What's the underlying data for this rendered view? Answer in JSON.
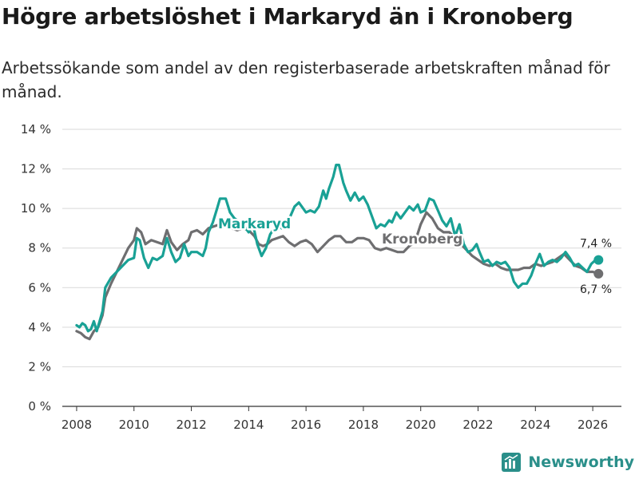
{
  "header": {
    "title": "Högre arbetslöshet i Markaryd än i Kronoberg",
    "subtitle": "Arbetssökande som andel av den registerbaserade arbetskraften månad för månad."
  },
  "brand": {
    "name": "Newsworthy"
  },
  "colors": {
    "markaryd": "#19a195",
    "kronoberg": "#6e6e70",
    "grid": "#d9d9d9",
    "axis": "#333333"
  },
  "chart_data": {
    "type": "line",
    "title": "Högre arbetslöshet i Markaryd än i Kronoberg",
    "xlabel": "",
    "ylabel": "",
    "xlim": [
      2007.5,
      2027.0
    ],
    "ylim": [
      0,
      14
    ],
    "grid": true,
    "x_ticks": [
      2008,
      2010,
      2012,
      2014,
      2016,
      2018,
      2020,
      2022,
      2024,
      2026
    ],
    "x_tick_labels": [
      "2008",
      "2010",
      "2012",
      "2014",
      "2016",
      "2018",
      "2020",
      "2022",
      "2024",
      "2026"
    ],
    "y_ticks": [
      0,
      2,
      4,
      6,
      8,
      10,
      12,
      14
    ],
    "y_tick_labels": [
      "0 %",
      "2 %",
      "4 %",
      "6 %",
      "8 %",
      "10 %",
      "12 %",
      "14 %"
    ],
    "series": [
      {
        "name": "Markaryd",
        "label": "Markaryd",
        "color": "#19a195",
        "end_label": "7,4 %",
        "points": [
          [
            2008.0,
            4.1
          ],
          [
            2008.1,
            4.0
          ],
          [
            2008.2,
            4.2
          ],
          [
            2008.3,
            4.1
          ],
          [
            2008.4,
            3.8
          ],
          [
            2008.5,
            3.9
          ],
          [
            2008.6,
            4.3
          ],
          [
            2008.7,
            3.8
          ],
          [
            2008.8,
            4.3
          ],
          [
            2008.9,
            4.8
          ],
          [
            2009.0,
            6.0
          ],
          [
            2009.2,
            6.5
          ],
          [
            2009.4,
            6.8
          ],
          [
            2009.6,
            7.1
          ],
          [
            2009.8,
            7.4
          ],
          [
            2010.0,
            7.5
          ],
          [
            2010.1,
            8.5
          ],
          [
            2010.2,
            8.4
          ],
          [
            2010.35,
            7.5
          ],
          [
            2010.5,
            7.0
          ],
          [
            2010.65,
            7.5
          ],
          [
            2010.8,
            7.4
          ],
          [
            2011.0,
            7.6
          ],
          [
            2011.15,
            8.5
          ],
          [
            2011.3,
            7.8
          ],
          [
            2011.45,
            7.3
          ],
          [
            2011.6,
            7.5
          ],
          [
            2011.75,
            8.2
          ],
          [
            2011.9,
            7.6
          ],
          [
            2012.0,
            7.8
          ],
          [
            2012.2,
            7.8
          ],
          [
            2012.4,
            7.6
          ],
          [
            2012.5,
            8.0
          ],
          [
            2012.6,
            8.8
          ],
          [
            2012.75,
            9.3
          ],
          [
            2012.9,
            10.0
          ],
          [
            2013.0,
            10.5
          ],
          [
            2013.2,
            10.5
          ],
          [
            2013.35,
            9.8
          ],
          [
            2013.5,
            9.5
          ],
          [
            2013.7,
            9.3
          ],
          [
            2013.9,
            9.0
          ],
          [
            2014.0,
            8.8
          ],
          [
            2014.15,
            9.2
          ],
          [
            2014.3,
            8.2
          ],
          [
            2014.45,
            7.6
          ],
          [
            2014.6,
            8.0
          ],
          [
            2014.75,
            8.7
          ],
          [
            2014.9,
            9.0
          ],
          [
            2015.0,
            9.3
          ],
          [
            2015.15,
            9.0
          ],
          [
            2015.3,
            9.2
          ],
          [
            2015.45,
            9.6
          ],
          [
            2015.6,
            10.1
          ],
          [
            2015.75,
            10.3
          ],
          [
            2015.9,
            10.0
          ],
          [
            2016.0,
            9.8
          ],
          [
            2016.15,
            9.9
          ],
          [
            2016.3,
            9.8
          ],
          [
            2016.45,
            10.1
          ],
          [
            2016.6,
            10.9
          ],
          [
            2016.7,
            10.5
          ],
          [
            2016.8,
            11.0
          ],
          [
            2016.95,
            11.6
          ],
          [
            2017.05,
            12.2
          ],
          [
            2017.15,
            12.2
          ],
          [
            2017.3,
            11.3
          ],
          [
            2017.4,
            10.9
          ],
          [
            2017.55,
            10.4
          ],
          [
            2017.7,
            10.8
          ],
          [
            2017.85,
            10.4
          ],
          [
            2018.0,
            10.6
          ],
          [
            2018.15,
            10.2
          ],
          [
            2018.3,
            9.6
          ],
          [
            2018.45,
            9.0
          ],
          [
            2018.6,
            9.2
          ],
          [
            2018.75,
            9.1
          ],
          [
            2018.9,
            9.4
          ],
          [
            2019.0,
            9.3
          ],
          [
            2019.15,
            9.8
          ],
          [
            2019.3,
            9.5
          ],
          [
            2019.45,
            9.8
          ],
          [
            2019.6,
            10.1
          ],
          [
            2019.75,
            9.9
          ],
          [
            2019.9,
            10.2
          ],
          [
            2020.0,
            9.8
          ],
          [
            2020.15,
            9.9
          ],
          [
            2020.3,
            10.5
          ],
          [
            2020.45,
            10.4
          ],
          [
            2020.6,
            9.9
          ],
          [
            2020.75,
            9.4
          ],
          [
            2020.9,
            9.1
          ],
          [
            2021.05,
            9.5
          ],
          [
            2021.2,
            8.6
          ],
          [
            2021.35,
            9.2
          ],
          [
            2021.5,
            8.2
          ],
          [
            2021.65,
            7.8
          ],
          [
            2021.8,
            7.9
          ],
          [
            2021.95,
            8.2
          ],
          [
            2022.05,
            7.8
          ],
          [
            2022.2,
            7.3
          ],
          [
            2022.35,
            7.4
          ],
          [
            2022.5,
            7.1
          ],
          [
            2022.65,
            7.3
          ],
          [
            2022.8,
            7.2
          ],
          [
            2022.95,
            7.3
          ],
          [
            2023.1,
            7.0
          ],
          [
            2023.25,
            6.3
          ],
          [
            2023.4,
            6.0
          ],
          [
            2023.55,
            6.2
          ],
          [
            2023.7,
            6.2
          ],
          [
            2023.85,
            6.6
          ],
          [
            2024.0,
            7.2
          ],
          [
            2024.15,
            7.7
          ],
          [
            2024.3,
            7.1
          ],
          [
            2024.45,
            7.3
          ],
          [
            2024.6,
            7.4
          ],
          [
            2024.75,
            7.3
          ],
          [
            2024.9,
            7.5
          ],
          [
            2025.05,
            7.8
          ],
          [
            2025.2,
            7.5
          ],
          [
            2025.35,
            7.1
          ],
          [
            2025.5,
            7.2
          ],
          [
            2025.65,
            7.0
          ],
          [
            2025.8,
            6.8
          ],
          [
            2025.95,
            7.2
          ],
          [
            2026.1,
            7.4
          ],
          [
            2026.2,
            7.4
          ]
        ]
      },
      {
        "name": "Kronoberg",
        "label": "Kronoberg",
        "color": "#6e6e70",
        "end_label": "6,7 %",
        "points": [
          [
            2008.0,
            3.8
          ],
          [
            2008.15,
            3.7
          ],
          [
            2008.3,
            3.5
          ],
          [
            2008.45,
            3.4
          ],
          [
            2008.6,
            3.8
          ],
          [
            2008.75,
            4.0
          ],
          [
            2008.9,
            4.6
          ],
          [
            2009.0,
            5.5
          ],
          [
            2009.2,
            6.2
          ],
          [
            2009.4,
            6.8
          ],
          [
            2009.6,
            7.4
          ],
          [
            2009.8,
            8.0
          ],
          [
            2010.0,
            8.4
          ],
          [
            2010.1,
            9.0
          ],
          [
            2010.25,
            8.8
          ],
          [
            2010.4,
            8.2
          ],
          [
            2010.6,
            8.4
          ],
          [
            2010.8,
            8.3
          ],
          [
            2011.0,
            8.2
          ],
          [
            2011.15,
            8.9
          ],
          [
            2011.3,
            8.3
          ],
          [
            2011.5,
            7.9
          ],
          [
            2011.7,
            8.2
          ],
          [
            2011.9,
            8.4
          ],
          [
            2012.0,
            8.8
          ],
          [
            2012.2,
            8.9
          ],
          [
            2012.4,
            8.7
          ],
          [
            2012.6,
            9.0
          ],
          [
            2012.8,
            9.1
          ],
          [
            2013.0,
            9.2
          ],
          [
            2013.2,
            9.2
          ],
          [
            2013.4,
            9.0
          ],
          [
            2013.6,
            8.9
          ],
          [
            2013.8,
            9.0
          ],
          [
            2014.0,
            8.9
          ],
          [
            2014.2,
            8.6
          ],
          [
            2014.35,
            8.2
          ],
          [
            2014.5,
            8.1
          ],
          [
            2014.65,
            8.2
          ],
          [
            2014.8,
            8.4
          ],
          [
            2015.0,
            8.5
          ],
          [
            2015.2,
            8.6
          ],
          [
            2015.4,
            8.3
          ],
          [
            2015.6,
            8.1
          ],
          [
            2015.8,
            8.3
          ],
          [
            2016.0,
            8.4
          ],
          [
            2016.2,
            8.2
          ],
          [
            2016.4,
            7.8
          ],
          [
            2016.6,
            8.1
          ],
          [
            2016.8,
            8.4
          ],
          [
            2017.0,
            8.6
          ],
          [
            2017.2,
            8.6
          ],
          [
            2017.4,
            8.3
          ],
          [
            2017.6,
            8.3
          ],
          [
            2017.8,
            8.5
          ],
          [
            2018.0,
            8.5
          ],
          [
            2018.2,
            8.4
          ],
          [
            2018.4,
            8.0
          ],
          [
            2018.6,
            7.9
          ],
          [
            2018.8,
            8.0
          ],
          [
            2019.0,
            7.9
          ],
          [
            2019.2,
            7.8
          ],
          [
            2019.4,
            7.8
          ],
          [
            2019.6,
            8.1
          ],
          [
            2019.8,
            8.3
          ],
          [
            2020.0,
            9.2
          ],
          [
            2020.2,
            9.8
          ],
          [
            2020.4,
            9.5
          ],
          [
            2020.6,
            9.0
          ],
          [
            2020.8,
            8.8
          ],
          [
            2021.0,
            8.8
          ],
          [
            2021.2,
            8.5
          ],
          [
            2021.4,
            8.2
          ],
          [
            2021.6,
            7.9
          ],
          [
            2021.8,
            7.6
          ],
          [
            2022.0,
            7.4
          ],
          [
            2022.2,
            7.2
          ],
          [
            2022.4,
            7.1
          ],
          [
            2022.6,
            7.2
          ],
          [
            2022.8,
            7.0
          ],
          [
            2023.0,
            6.9
          ],
          [
            2023.2,
            6.9
          ],
          [
            2023.4,
            6.9
          ],
          [
            2023.6,
            7.0
          ],
          [
            2023.8,
            7.0
          ],
          [
            2024.0,
            7.2
          ],
          [
            2024.2,
            7.1
          ],
          [
            2024.4,
            7.2
          ],
          [
            2024.6,
            7.3
          ],
          [
            2024.8,
            7.5
          ],
          [
            2025.0,
            7.7
          ],
          [
            2025.2,
            7.4
          ],
          [
            2025.4,
            7.1
          ],
          [
            2025.6,
            7.0
          ],
          [
            2025.8,
            6.8
          ],
          [
            2026.0,
            6.8
          ],
          [
            2026.2,
            6.7
          ]
        ]
      }
    ]
  }
}
